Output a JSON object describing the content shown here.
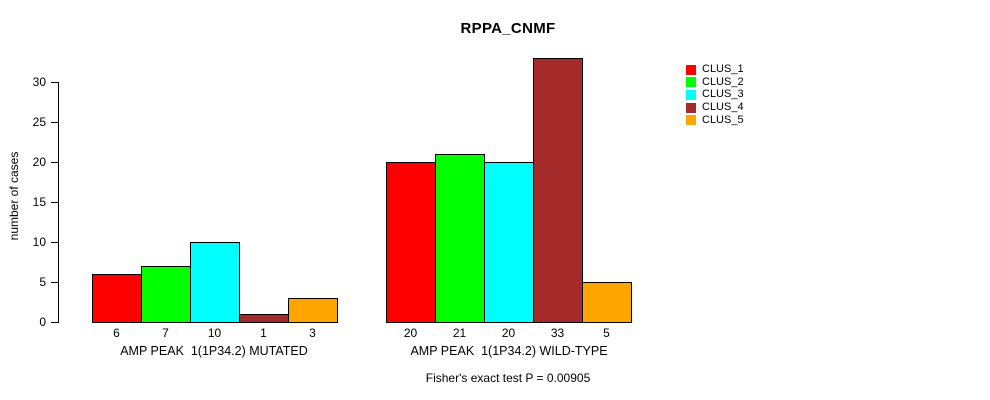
{
  "chart_data": {
    "type": "bar",
    "title": "RPPA_CNMF",
    "ylabel": "number of cases",
    "xlabel": "",
    "ylim": [
      0,
      33
    ],
    "yticks": [
      0,
      5,
      10,
      15,
      20,
      25,
      30
    ],
    "grid": false,
    "legend_position": "right-outside",
    "categories": [
      "AMP PEAK  1(1P34.2) MUTATED",
      "AMP PEAK  1(1P34.2) WILD-TYPE"
    ],
    "series": [
      {
        "name": "CLUS_1",
        "color": "#ff0000",
        "values": [
          6,
          20
        ]
      },
      {
        "name": "CLUS_2",
        "color": "#00ff00",
        "values": [
          7,
          21
        ]
      },
      {
        "name": "CLUS_3",
        "color": "#00ffff",
        "values": [
          10,
          20
        ]
      },
      {
        "name": "CLUS_4",
        "color": "#a52a2a",
        "values": [
          1,
          33
        ]
      },
      {
        "name": "CLUS_5",
        "color": "#ffa500",
        "values": [
          3,
          5
        ]
      }
    ],
    "bar_value_labels": [
      [
        6,
        7,
        10,
        1,
        3
      ],
      [
        20,
        21,
        20,
        33,
        5
      ]
    ],
    "annotation": "Fisher's exact test P = 0.00905"
  }
}
